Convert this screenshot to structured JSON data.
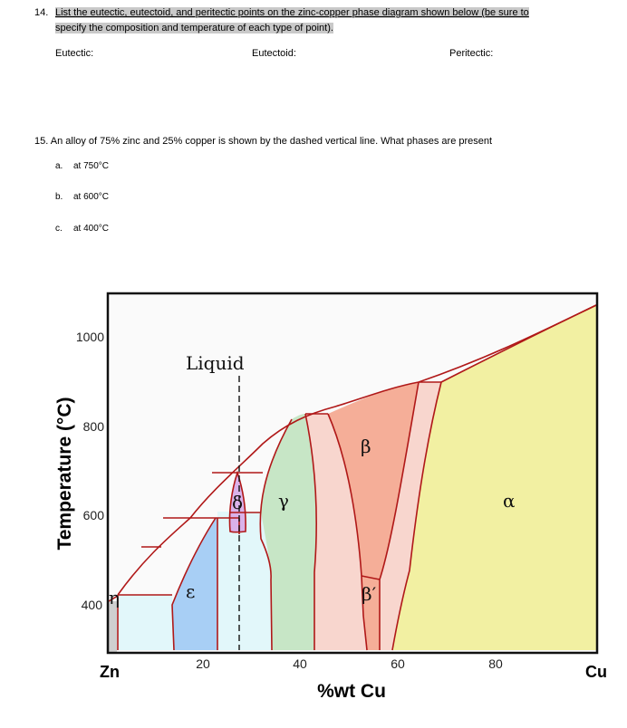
{
  "q14": {
    "number": "14.",
    "line1": "List the eutectic, eutectoid, and peritectic points on the zinc-copper phase diagram shown below (be sure to",
    "line2": "specify the composition and temperature of each type of point).",
    "labels": {
      "eutectic": "Eutectic:",
      "eutectoid": "Eutectoid:",
      "peritectic": "Peritectic:"
    }
  },
  "q15": {
    "text": "15. An alloy of 75% zinc and 25% copper is shown by the dashed vertical line. What phases are present",
    "items": [
      {
        "letter": "a.",
        "text": "at 750°C"
      },
      {
        "letter": "b.",
        "text": "at 600°C"
      },
      {
        "letter": "c.",
        "text": "at 400°C"
      }
    ]
  },
  "diagram": {
    "ylabel": "Temperature (°C)",
    "xlabel": "%wt Cu",
    "y_ticks": [
      "1000",
      "800",
      "600",
      "400"
    ],
    "x_ticks": [
      "20",
      "40",
      "60",
      "80"
    ],
    "x_end_left": "Zn",
    "x_end_right": "Cu",
    "phases": {
      "liquid": "Liquid",
      "gamma": "γ",
      "beta": "β",
      "alpha": "α",
      "delta": "δ",
      "epsilon": "ε",
      "beta_prime": "β′",
      "eta": "η"
    },
    "colors": {
      "alpha": "#f2f0a2",
      "beta": "#f5ae98",
      "gamma": "#c7e6c6",
      "epsilon": "#a8cff5",
      "delta": "#d9b2ea",
      "pink": "#f8d6ce",
      "cyan": "#e2f7fa",
      "eta": "#cfcfcf",
      "liquid": "#fafafa",
      "boundary": "#b01818"
    }
  }
}
